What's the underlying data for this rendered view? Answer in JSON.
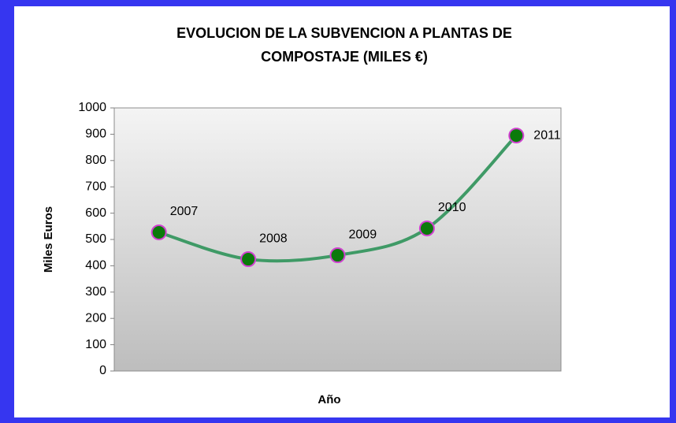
{
  "chart_data": {
    "type": "line",
    "title": [
      "EVOLUCION DE LA SUBVENCION A PLANTAS DE",
      "COMPOSTAJE (MILES €)"
    ],
    "x_label": "Año",
    "y_label": "Miles Euros",
    "categories": [
      "2007",
      "2008",
      "2009",
      "2010",
      "2011"
    ],
    "values": [
      527,
      425,
      440,
      542,
      895
    ],
    "color": "#3f9a66",
    "marker_color": "#0b7a0b",
    "marker_edge": "#d040d0",
    "smooth": true,
    "grid": false,
    "ylim": [
      0,
      1000
    ],
    "yticks": [
      0,
      100,
      200,
      300,
      400,
      500,
      600,
      700,
      800,
      900,
      1000
    ]
  }
}
